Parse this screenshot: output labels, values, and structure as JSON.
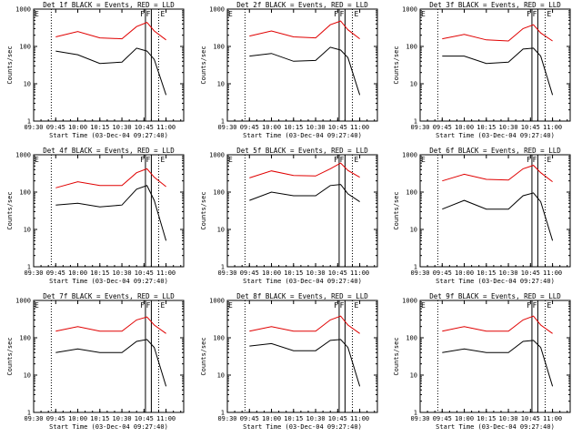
{
  "colors": {
    "events": "#000000",
    "lld": "#e00000",
    "axes": "#000000",
    "background": "#ffffff"
  },
  "flags": [
    "F",
    "F",
    "E"
  ],
  "chart_data": [
    {
      "type": "line",
      "title": "Det 1f BLACK = Events, RED = LLD",
      "xlabel": "Start Time (03-Dec-04 09:27:40)",
      "ylabel": "Counts/sec",
      "xticks": [
        "09:30",
        "09:45",
        "10:00",
        "10:15",
        "10:30",
        "10:45",
        "11:00"
      ],
      "yticks": [
        "1",
        "10",
        "100",
        "1000"
      ],
      "ylog": true,
      "ylim": [
        1,
        1000
      ],
      "x": [
        "09:45",
        "10:00",
        "10:15",
        "10:30",
        "10:40",
        "10:47",
        "10:52",
        "11:00"
      ],
      "series": [
        {
          "values": [
            75,
            60,
            35,
            38,
            90,
            75,
            45,
            5
          ]
        },
        {
          "values": [
            180,
            250,
            170,
            160,
            340,
            440,
            260,
            150
          ]
        }
      ]
    },
    {
      "type": "line",
      "title": "Det 2f BLACK = Events, RED = LLD",
      "xlabel": "Start Time (03-Dec-04 09:27:40)",
      "ylabel": "Counts/sec",
      "xticks": [
        "09:30",
        "09:45",
        "10:00",
        "10:15",
        "10:30",
        "10:45",
        "11:00"
      ],
      "yticks": [
        "1",
        "10",
        "100",
        "1000"
      ],
      "ylog": true,
      "ylim": [
        1,
        1000
      ],
      "x": [
        "09:45",
        "10:00",
        "10:15",
        "10:30",
        "10:40",
        "10:47",
        "10:52",
        "11:00"
      ],
      "series": [
        {
          "values": [
            55,
            65,
            40,
            42,
            95,
            80,
            50,
            5
          ]
        },
        {
          "values": [
            190,
            260,
            180,
            170,
            380,
            480,
            280,
            160
          ]
        }
      ]
    },
    {
      "type": "line",
      "title": "Det 3f BLACK = Events, RED = LLD",
      "xlabel": "Start Time (03-Dec-04 09:27:40)",
      "ylabel": "Counts/sec",
      "xticks": [
        "09:30",
        "09:45",
        "10:00",
        "10:15",
        "10:30",
        "10:45",
        "11:00"
      ],
      "yticks": [
        "1",
        "10",
        "100",
        "1000"
      ],
      "ylog": true,
      "ylim": [
        1,
        1000
      ],
      "x": [
        "09:45",
        "10:00",
        "10:15",
        "10:30",
        "10:40",
        "10:47",
        "10:52",
        "11:00"
      ],
      "series": [
        {
          "values": [
            55,
            55,
            35,
            38,
            85,
            90,
            55,
            5
          ]
        },
        {
          "values": [
            160,
            210,
            150,
            140,
            300,
            380,
            230,
            140
          ]
        }
      ]
    },
    {
      "type": "line",
      "title": "Det 4f BLACK = Events, RED = LLD",
      "xlabel": "Start Time (03-Dec-04 09:27:40)",
      "ylabel": "Counts/sec",
      "xticks": [
        "09:30",
        "09:45",
        "10:00",
        "10:15",
        "10:30",
        "10:45",
        "11:00"
      ],
      "yticks": [
        "1",
        "10",
        "100",
        "1000"
      ],
      "ylog": true,
      "ylim": [
        1,
        1000
      ],
      "x": [
        "09:45",
        "10:00",
        "10:15",
        "10:30",
        "10:40",
        "10:47",
        "10:52",
        "11:00"
      ],
      "series": [
        {
          "values": [
            45,
            50,
            40,
            45,
            120,
            150,
            60,
            5
          ]
        },
        {
          "values": [
            130,
            190,
            150,
            150,
            330,
            420,
            250,
            140
          ]
        }
      ]
    },
    {
      "type": "line",
      "title": "Det 5f BLACK = Events, RED = LLD",
      "xlabel": "Start Time (03-Dec-04 09:27:40)",
      "ylabel": "Counts/sec",
      "xticks": [
        "09:30",
        "09:45",
        "10:00",
        "10:15",
        "10:30",
        "10:45",
        "11:00"
      ],
      "yticks": [
        "1",
        "10",
        "100",
        "1000"
      ],
      "ylog": true,
      "ylim": [
        1,
        1000
      ],
      "x": [
        "09:45",
        "10:00",
        "10:15",
        "10:30",
        "10:40",
        "10:47",
        "10:52",
        "11:00"
      ],
      "series": [
        {
          "values": [
            60,
            100,
            80,
            80,
            150,
            160,
            90,
            55
          ]
        },
        {
          "values": [
            240,
            370,
            280,
            270,
            420,
            600,
            380,
            250
          ]
        }
      ]
    },
    {
      "type": "line",
      "title": "Det 6f BLACK = Events, RED = LLD",
      "xlabel": "Start Time (03-Dec-04 09:27:40)",
      "ylabel": "Counts/sec",
      "xticks": [
        "09:30",
        "09:45",
        "10:00",
        "10:15",
        "10:30",
        "10:45",
        "11:00"
      ],
      "yticks": [
        "1",
        "10",
        "100",
        "1000"
      ],
      "ylog": true,
      "ylim": [
        1,
        1000
      ],
      "x": [
        "09:45",
        "10:00",
        "10:15",
        "10:30",
        "10:40",
        "10:47",
        "10:52",
        "11:00"
      ],
      "series": [
        {
          "values": [
            35,
            60,
            35,
            35,
            80,
            95,
            55,
            5
          ]
        },
        {
          "values": [
            200,
            300,
            220,
            210,
            420,
            520,
            330,
            190
          ]
        }
      ]
    },
    {
      "type": "line",
      "title": "Det 7f BLACK = Events, RED = LLD",
      "xlabel": "Start Time (03-Dec-04 09:27:40)",
      "ylabel": "Counts/sec",
      "xticks": [
        "09:30",
        "09:45",
        "10:00",
        "10:15",
        "10:30",
        "10:45",
        "11:00"
      ],
      "yticks": [
        "1",
        "10",
        "100",
        "1000"
      ],
      "ylog": true,
      "ylim": [
        1,
        1000
      ],
      "x": [
        "09:45",
        "10:00",
        "10:15",
        "10:30",
        "10:40",
        "10:47",
        "10:52",
        "11:00"
      ],
      "series": [
        {
          "values": [
            40,
            50,
            40,
            40,
            80,
            90,
            55,
            5
          ]
        },
        {
          "values": [
            150,
            200,
            150,
            150,
            300,
            360,
            220,
            130
          ]
        }
      ]
    },
    {
      "type": "line",
      "title": "Det 8f BLACK = Events, RED = LLD",
      "xlabel": "Start Time (03-Dec-04 09:27:40)",
      "ylabel": "Counts/sec",
      "xticks": [
        "09:30",
        "09:45",
        "10:00",
        "10:15",
        "10:30",
        "10:45",
        "11:00"
      ],
      "yticks": [
        "1",
        "10",
        "100",
        "1000"
      ],
      "ylog": true,
      "ylim": [
        1,
        1000
      ],
      "x": [
        "09:45",
        "10:00",
        "10:15",
        "10:30",
        "10:40",
        "10:47",
        "10:52",
        "11:00"
      ],
      "series": [
        {
          "values": [
            60,
            70,
            45,
            45,
            85,
            90,
            55,
            5
          ]
        },
        {
          "values": [
            150,
            200,
            150,
            150,
            300,
            380,
            220,
            130
          ]
        }
      ]
    },
    {
      "type": "line",
      "title": "Det 9f BLACK = Events, RED = LLD",
      "xlabel": "Start Time (03-Dec-04 09:27:40)",
      "ylabel": "Counts/sec",
      "xticks": [
        "09:30",
        "09:45",
        "10:00",
        "10:15",
        "10:30",
        "10:45",
        "11:00"
      ],
      "yticks": [
        "1",
        "10",
        "100",
        "1000"
      ],
      "ylog": true,
      "ylim": [
        1,
        1000
      ],
      "x": [
        "09:45",
        "10:00",
        "10:15",
        "10:30",
        "10:40",
        "10:47",
        "10:52",
        "11:00"
      ],
      "series": [
        {
          "values": [
            40,
            50,
            40,
            40,
            80,
            85,
            55,
            5
          ]
        },
        {
          "values": [
            150,
            200,
            150,
            150,
            300,
            380,
            220,
            130
          ]
        }
      ]
    }
  ]
}
